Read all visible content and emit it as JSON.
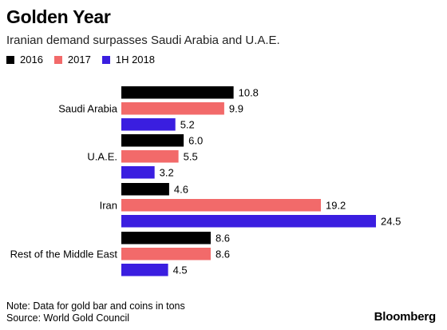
{
  "chart_data": {
    "type": "bar",
    "orientation": "horizontal",
    "title": "Golden Year",
    "subtitle": "Iranian demand surpasses Saudi Arabia and U.A.E.",
    "categories": [
      "Saudi Arabia",
      "U.A.E.",
      "Iran",
      "Rest of the Middle East"
    ],
    "series": [
      {
        "name": "2016",
        "color": "#000000",
        "values": [
          10.8,
          6.0,
          4.6,
          8.6
        ]
      },
      {
        "name": "2017",
        "color": "#f26a6a",
        "values": [
          9.9,
          5.5,
          19.2,
          8.6
        ]
      },
      {
        "name": "1H 2018",
        "color": "#3a1ee0",
        "values": [
          5.2,
          3.2,
          24.5,
          4.5
        ]
      }
    ],
    "value_labels": [
      [
        "10.8",
        "6.0",
        "4.6",
        "8.6"
      ],
      [
        "9.9",
        "5.5",
        "19.2",
        "8.6"
      ],
      [
        "5.2",
        "3.2",
        "24.5",
        "4.5"
      ]
    ],
    "xlim": [
      0,
      24.5
    ],
    "grid": false,
    "legend_position": "top-left"
  },
  "footer": {
    "note": "Note: Data for gold bar and coins in tons",
    "source": "Source: World Gold Council",
    "brand": "Bloomberg"
  }
}
